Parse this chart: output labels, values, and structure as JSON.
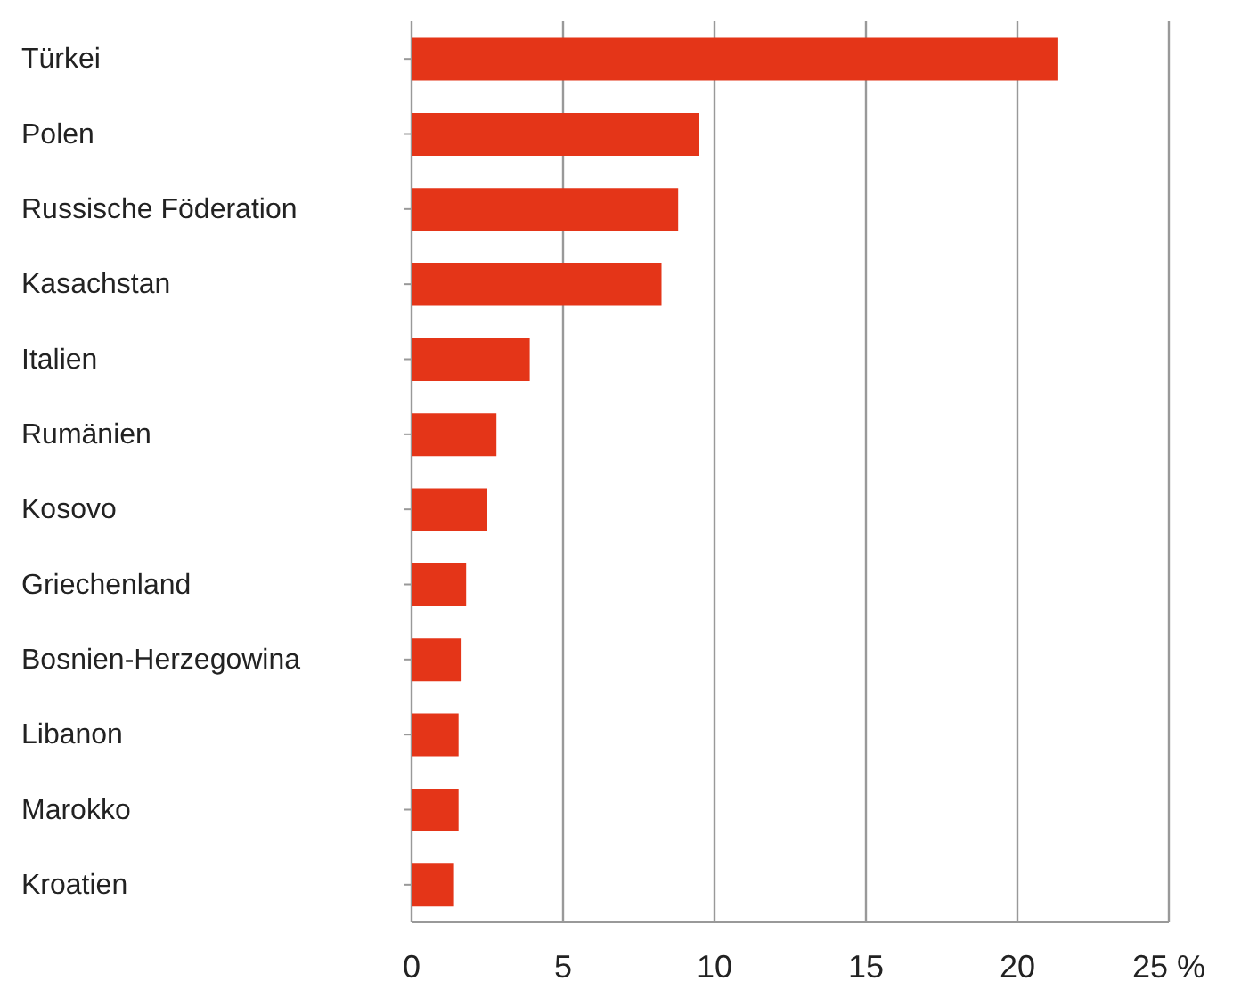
{
  "chart_data": {
    "type": "bar",
    "orientation": "horizontal",
    "categories": [
      "Türkei",
      "Polen",
      "Russische Föderation",
      "Kasachstan",
      "Italien",
      "Rumänien",
      "Kosovo",
      "Griechenland",
      "Bosnien-Herzegowina",
      "Libanon",
      "Marokko",
      "Kroatien"
    ],
    "values": [
      21.35,
      9.5,
      8.8,
      8.25,
      3.9,
      2.8,
      2.5,
      1.8,
      1.65,
      1.55,
      1.55,
      1.4
    ],
    "color": "#e43518",
    "xlim": [
      0,
      25
    ],
    "xticks": [
      0,
      5,
      10,
      15,
      20,
      {
        "value": 25,
        "label": "25 %"
      }
    ],
    "grid": "x"
  }
}
